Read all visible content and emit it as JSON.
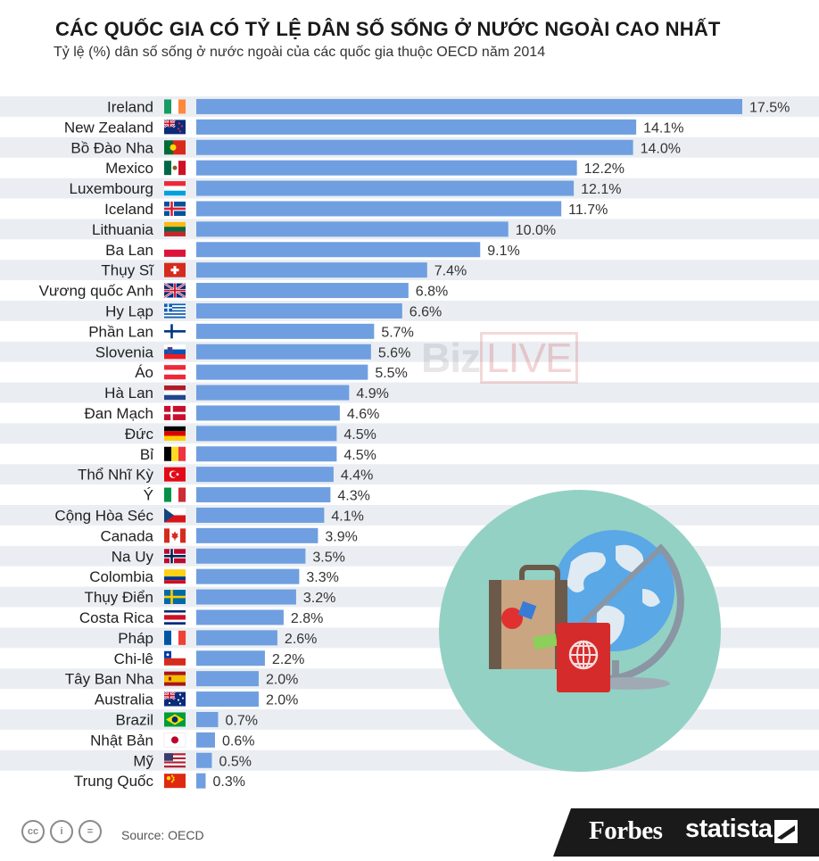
{
  "chart_data": {
    "type": "bar",
    "orientation": "horizontal",
    "title": "CÁC QUỐC GIA CÓ TỶ LỆ DÂN SỐ SỐNG Ở NƯỚC NGOÀI CAO NHẤT",
    "subtitle": "Tỷ lệ (%) dân số sống ở nước ngoài của các quốc gia thuộc OECD năm 2014",
    "categories": [
      "Ireland",
      "New Zealand",
      "Bồ Đào Nha",
      "Mexico",
      "Luxembourg",
      "Iceland",
      "Lithuania",
      "Ba Lan",
      "Thụy Sĩ",
      "Vương quốc Anh",
      "Hy Lạp",
      "Phần Lan",
      "Slovenia",
      "Áo",
      "Hà Lan",
      "Đan Mạch",
      "Đức",
      "Bỉ",
      "Thổ Nhĩ Kỳ",
      "Ý",
      "Cộng Hòa Séc",
      "Canada",
      "Na Uy",
      "Colombia",
      "Thụy Điển",
      "Costa Rica",
      "Pháp",
      "Chi-lê",
      "Tây Ban Nha",
      "Australia",
      "Brazil",
      "Nhật Bản",
      "Mỹ",
      "Trung Quốc"
    ],
    "values": [
      17.5,
      14.1,
      14.0,
      12.2,
      12.1,
      11.7,
      10.0,
      9.1,
      7.4,
      6.8,
      6.6,
      5.7,
      5.6,
      5.5,
      4.9,
      4.6,
      4.5,
      4.5,
      4.4,
      4.3,
      4.1,
      3.9,
      3.5,
      3.3,
      3.2,
      2.8,
      2.6,
      2.2,
      2.0,
      2.0,
      0.7,
      0.6,
      0.5,
      0.3
    ],
    "value_labels": [
      "17.5%",
      "14.1%",
      "14.0%",
      "12.2%",
      "12.1%",
      "11.7%",
      "10.0%",
      "9.1%",
      "7.4%",
      "6.8%",
      "6.6%",
      "5.7%",
      "5.6%",
      "5.5%",
      "4.9%",
      "4.6%",
      "4.5%",
      "4.5%",
      "4.4%",
      "4.3%",
      "4.1%",
      "3.9%",
      "3.5%",
      "3.3%",
      "3.2%",
      "2.8%",
      "2.6%",
      "2.2%",
      "2.0%",
      "2.0%",
      "0.7%",
      "0.6%",
      "0.5%",
      "0.3%"
    ],
    "flags": [
      "ireland",
      "new-zealand",
      "portugal",
      "mexico",
      "luxembourg",
      "iceland",
      "lithuania",
      "poland",
      "switzerland",
      "united-kingdom",
      "greece",
      "finland",
      "slovenia",
      "austria",
      "netherlands",
      "denmark",
      "germany",
      "belgium",
      "turkey",
      "italy",
      "czech-republic",
      "canada",
      "norway",
      "colombia",
      "sweden",
      "costa-rica",
      "france",
      "chile",
      "spain",
      "australia",
      "brazil",
      "japan",
      "usa",
      "china"
    ],
    "xlim": [
      0,
      17.5
    ],
    "bar_color": "#6f9fe0",
    "row_band_color": "#eaeef3",
    "legend": "none"
  },
  "watermark": {
    "left": "Biz",
    "right": "LIVE"
  },
  "footer": {
    "source": "Source: OECD",
    "forbes": "Forbes",
    "statista": "statista",
    "cc_icons": [
      "cc",
      "i",
      "="
    ],
    "background": "#1a1a1a"
  },
  "illustration": {
    "circle_color": "#93d1c4",
    "passport_color": "#d62b2b"
  }
}
